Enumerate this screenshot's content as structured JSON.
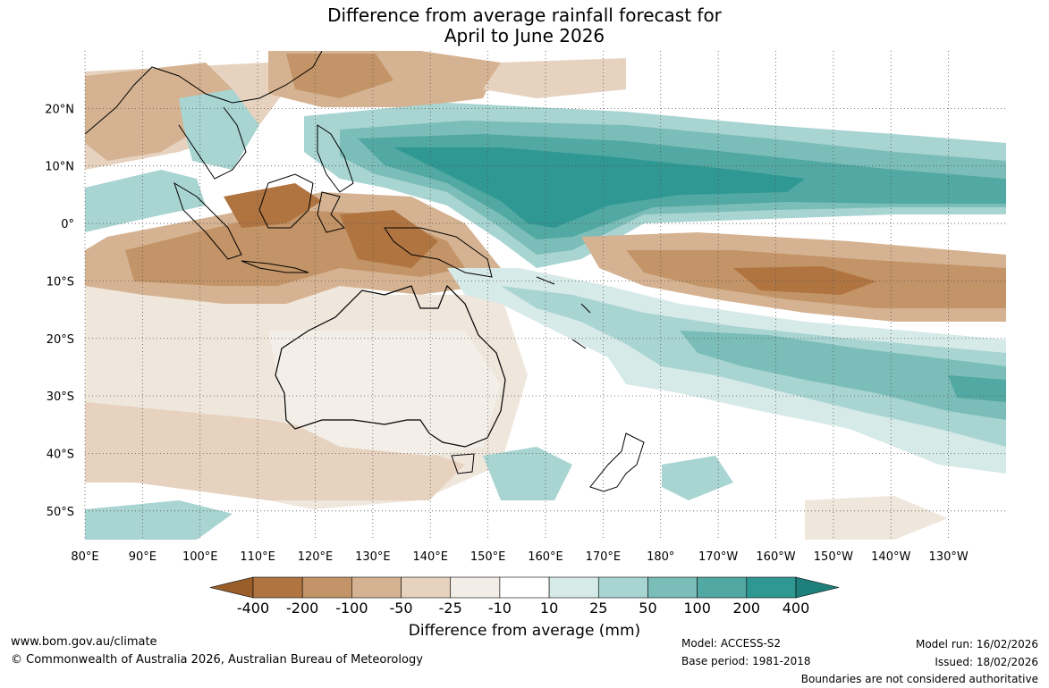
{
  "title": {
    "line1": "Difference from average rainfall forecast for",
    "line2": "April to June 2026"
  },
  "map": {
    "lon_labels": [
      "80°E",
      "90°E",
      "100°E",
      "110°E",
      "120°E",
      "130°E",
      "140°E",
      "150°E",
      "160°E",
      "170°E",
      "180°",
      "170°W",
      "160°W",
      "150°W",
      "140°W",
      "130°W"
    ],
    "lat_labels": [
      "20°N",
      "10°N",
      "0°",
      "10°S",
      "20°S",
      "30°S",
      "40°S",
      "50°S"
    ],
    "lon_range_deg_east": [
      80,
      240
    ],
    "lat_range_deg": [
      -55,
      30
    ],
    "gridlines": "dotted"
  },
  "legend": {
    "title": "Difference from average (mm)",
    "ticks": [
      "-400",
      "-200",
      "-100",
      "-50",
      "-25",
      "-10",
      "10",
      "25",
      "50",
      "100",
      "200",
      "400"
    ],
    "colors": [
      "#9a5e2b",
      "#b07440",
      "#c39467",
      "#d5b392",
      "#e6d2be",
      "#f2ede6",
      "#ffffff",
      "#d6eae8",
      "#a8d4d1",
      "#7bbdb8",
      "#52a8a2",
      "#2f9893",
      "#1e7f7b"
    ]
  },
  "footer": {
    "website": "www.bom.gov.au/climate",
    "copyright": "© Commonwealth of Australia 2026, Australian Bureau of Meteorology",
    "model": "Model: ACCESS-S2",
    "base_period": "Base period: 1981-2018",
    "model_run": "Model run: 16/02/2026",
    "issued": "Issued: 18/02/2026",
    "boundaries": "Boundaries are not considered authoritative"
  }
}
